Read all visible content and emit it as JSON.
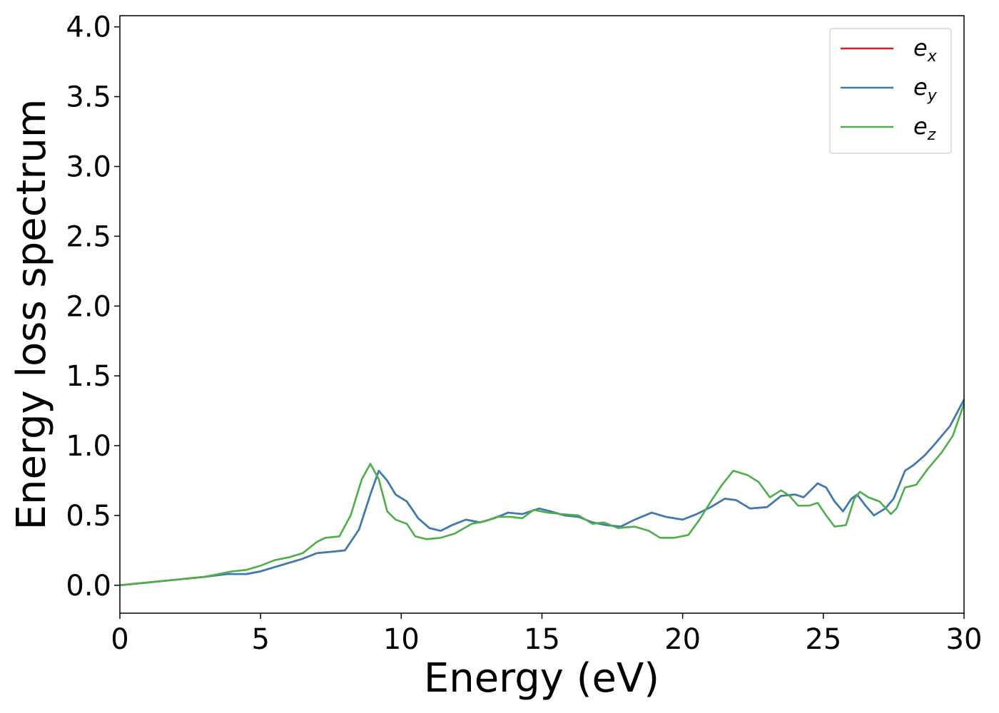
{
  "chart_data": {
    "type": "line",
    "title": "",
    "xlabel": "Energy (eV)",
    "ylabel": "Energy loss spectrum",
    "xlim": [
      0,
      30
    ],
    "ylim": [
      -0.2,
      4.08
    ],
    "xticks": [
      0,
      5,
      10,
      15,
      20,
      25,
      30
    ],
    "xtick_labels": [
      "0",
      "5",
      "10",
      "15",
      "20",
      "25",
      "30"
    ],
    "yticks": [
      0.0,
      0.5,
      1.0,
      1.5,
      2.0,
      2.5,
      3.0,
      3.5,
      4.0
    ],
    "ytick_labels": [
      "0.0",
      "0.5",
      "1.0",
      "1.5",
      "2.0",
      "2.5",
      "3.0",
      "3.5",
      "4.0"
    ],
    "grid": false,
    "legend_position": "top-right",
    "series": [
      {
        "name": "e_x",
        "legend_base": "e",
        "legend_sub": "x",
        "color": "#e41a1c",
        "points": [
          [
            0,
            0.0
          ],
          [
            1,
            0.02
          ],
          [
            2,
            0.04
          ],
          [
            3,
            0.06
          ],
          [
            3.8,
            0.08
          ],
          [
            4.5,
            0.08
          ],
          [
            5,
            0.1
          ],
          [
            5.5,
            0.13
          ],
          [
            6,
            0.16
          ],
          [
            6.5,
            0.19
          ],
          [
            7,
            0.23
          ],
          [
            7.5,
            0.24
          ],
          [
            8,
            0.25
          ],
          [
            8.5,
            0.4
          ],
          [
            8.9,
            0.65
          ],
          [
            9.2,
            0.82
          ],
          [
            9.5,
            0.75
          ],
          [
            9.8,
            0.65
          ],
          [
            10.2,
            0.6
          ],
          [
            10.6,
            0.48
          ],
          [
            11,
            0.41
          ],
          [
            11.4,
            0.39
          ],
          [
            11.8,
            0.43
          ],
          [
            12.3,
            0.47
          ],
          [
            12.8,
            0.45
          ],
          [
            13.3,
            0.48
          ],
          [
            13.8,
            0.52
          ],
          [
            14.3,
            0.51
          ],
          [
            14.9,
            0.55
          ],
          [
            15.3,
            0.53
          ],
          [
            15.8,
            0.5
          ],
          [
            16.3,
            0.49
          ],
          [
            16.8,
            0.45
          ],
          [
            17.3,
            0.43
          ],
          [
            17.8,
            0.42
          ],
          [
            18.3,
            0.47
          ],
          [
            18.9,
            0.52
          ],
          [
            19.4,
            0.49
          ],
          [
            20,
            0.47
          ],
          [
            20.5,
            0.51
          ],
          [
            21,
            0.56
          ],
          [
            21.5,
            0.62
          ],
          [
            21.9,
            0.61
          ],
          [
            22.4,
            0.55
          ],
          [
            23,
            0.56
          ],
          [
            23.5,
            0.64
          ],
          [
            24,
            0.65
          ],
          [
            24.3,
            0.63
          ],
          [
            24.8,
            0.73
          ],
          [
            25.1,
            0.7
          ],
          [
            25.4,
            0.6
          ],
          [
            25.7,
            0.53
          ],
          [
            26,
            0.62
          ],
          [
            26.2,
            0.65
          ],
          [
            26.5,
            0.57
          ],
          [
            26.8,
            0.5
          ],
          [
            27.2,
            0.55
          ],
          [
            27.5,
            0.62
          ],
          [
            27.9,
            0.82
          ],
          [
            28.2,
            0.86
          ],
          [
            28.6,
            0.93
          ],
          [
            29,
            1.02
          ],
          [
            29.5,
            1.14
          ],
          [
            30,
            1.33
          ]
        ]
      },
      {
        "name": "e_y",
        "legend_base": "e",
        "legend_sub": "y",
        "color": "#377eb8",
        "points": [
          [
            0,
            0.0
          ],
          [
            1,
            0.02
          ],
          [
            2,
            0.04
          ],
          [
            3,
            0.06
          ],
          [
            3.8,
            0.08
          ],
          [
            4.5,
            0.08
          ],
          [
            5,
            0.1
          ],
          [
            5.5,
            0.13
          ],
          [
            6,
            0.16
          ],
          [
            6.5,
            0.19
          ],
          [
            7,
            0.23
          ],
          [
            7.5,
            0.24
          ],
          [
            8,
            0.25
          ],
          [
            8.5,
            0.4
          ],
          [
            8.9,
            0.65
          ],
          [
            9.2,
            0.82
          ],
          [
            9.5,
            0.75
          ],
          [
            9.8,
            0.65
          ],
          [
            10.2,
            0.6
          ],
          [
            10.6,
            0.48
          ],
          [
            11,
            0.41
          ],
          [
            11.4,
            0.39
          ],
          [
            11.8,
            0.43
          ],
          [
            12.3,
            0.47
          ],
          [
            12.8,
            0.45
          ],
          [
            13.3,
            0.48
          ],
          [
            13.8,
            0.52
          ],
          [
            14.3,
            0.51
          ],
          [
            14.9,
            0.55
          ],
          [
            15.3,
            0.53
          ],
          [
            15.8,
            0.5
          ],
          [
            16.3,
            0.49
          ],
          [
            16.8,
            0.45
          ],
          [
            17.3,
            0.43
          ],
          [
            17.8,
            0.42
          ],
          [
            18.3,
            0.47
          ],
          [
            18.9,
            0.52
          ],
          [
            19.4,
            0.49
          ],
          [
            20,
            0.47
          ],
          [
            20.5,
            0.51
          ],
          [
            21,
            0.56
          ],
          [
            21.5,
            0.62
          ],
          [
            21.9,
            0.61
          ],
          [
            22.4,
            0.55
          ],
          [
            23,
            0.56
          ],
          [
            23.5,
            0.64
          ],
          [
            24,
            0.65
          ],
          [
            24.3,
            0.63
          ],
          [
            24.8,
            0.73
          ],
          [
            25.1,
            0.7
          ],
          [
            25.4,
            0.6
          ],
          [
            25.7,
            0.53
          ],
          [
            26,
            0.62
          ],
          [
            26.2,
            0.65
          ],
          [
            26.5,
            0.57
          ],
          [
            26.8,
            0.5
          ],
          [
            27.2,
            0.55
          ],
          [
            27.5,
            0.62
          ],
          [
            27.9,
            0.82
          ],
          [
            28.2,
            0.86
          ],
          [
            28.6,
            0.93
          ],
          [
            29,
            1.02
          ],
          [
            29.5,
            1.14
          ],
          [
            30,
            1.33
          ]
        ]
      },
      {
        "name": "e_z",
        "legend_base": "e",
        "legend_sub": "z",
        "color": "#4daf4a",
        "points": [
          [
            0,
            0.0
          ],
          [
            1,
            0.02
          ],
          [
            2,
            0.04
          ],
          [
            3,
            0.06
          ],
          [
            3.5,
            0.08
          ],
          [
            4,
            0.1
          ],
          [
            4.5,
            0.11
          ],
          [
            5,
            0.14
          ],
          [
            5.5,
            0.18
          ],
          [
            6,
            0.2
          ],
          [
            6.5,
            0.23
          ],
          [
            7,
            0.31
          ],
          [
            7.3,
            0.34
          ],
          [
            7.8,
            0.35
          ],
          [
            8.2,
            0.5
          ],
          [
            8.6,
            0.76
          ],
          [
            8.9,
            0.87
          ],
          [
            9.2,
            0.76
          ],
          [
            9.5,
            0.53
          ],
          [
            9.8,
            0.47
          ],
          [
            10.2,
            0.44
          ],
          [
            10.5,
            0.35
          ],
          [
            10.9,
            0.33
          ],
          [
            11.4,
            0.34
          ],
          [
            11.9,
            0.37
          ],
          [
            12.5,
            0.44
          ],
          [
            13,
            0.46
          ],
          [
            13.4,
            0.49
          ],
          [
            13.9,
            0.49
          ],
          [
            14.3,
            0.48
          ],
          [
            14.7,
            0.54
          ],
          [
            15.2,
            0.52
          ],
          [
            15.7,
            0.51
          ],
          [
            16.3,
            0.5
          ],
          [
            16.8,
            0.44
          ],
          [
            17.2,
            0.45
          ],
          [
            17.7,
            0.41
          ],
          [
            18.3,
            0.42
          ],
          [
            18.8,
            0.39
          ],
          [
            19.2,
            0.34
          ],
          [
            19.7,
            0.34
          ],
          [
            20.2,
            0.36
          ],
          [
            20.6,
            0.47
          ],
          [
            21,
            0.6
          ],
          [
            21.4,
            0.72
          ],
          [
            21.8,
            0.82
          ],
          [
            22.3,
            0.79
          ],
          [
            22.7,
            0.74
          ],
          [
            23.1,
            0.63
          ],
          [
            23.5,
            0.68
          ],
          [
            23.8,
            0.64
          ],
          [
            24.1,
            0.57
          ],
          [
            24.5,
            0.57
          ],
          [
            24.8,
            0.59
          ],
          [
            25.1,
            0.5
          ],
          [
            25.4,
            0.42
          ],
          [
            25.8,
            0.43
          ],
          [
            26.1,
            0.62
          ],
          [
            26.3,
            0.67
          ],
          [
            26.6,
            0.63
          ],
          [
            27,
            0.6
          ],
          [
            27.4,
            0.51
          ],
          [
            27.6,
            0.55
          ],
          [
            27.9,
            0.7
          ],
          [
            28.3,
            0.72
          ],
          [
            28.7,
            0.83
          ],
          [
            29.2,
            0.95
          ],
          [
            29.6,
            1.07
          ],
          [
            30,
            1.3
          ]
        ]
      }
    ]
  }
}
